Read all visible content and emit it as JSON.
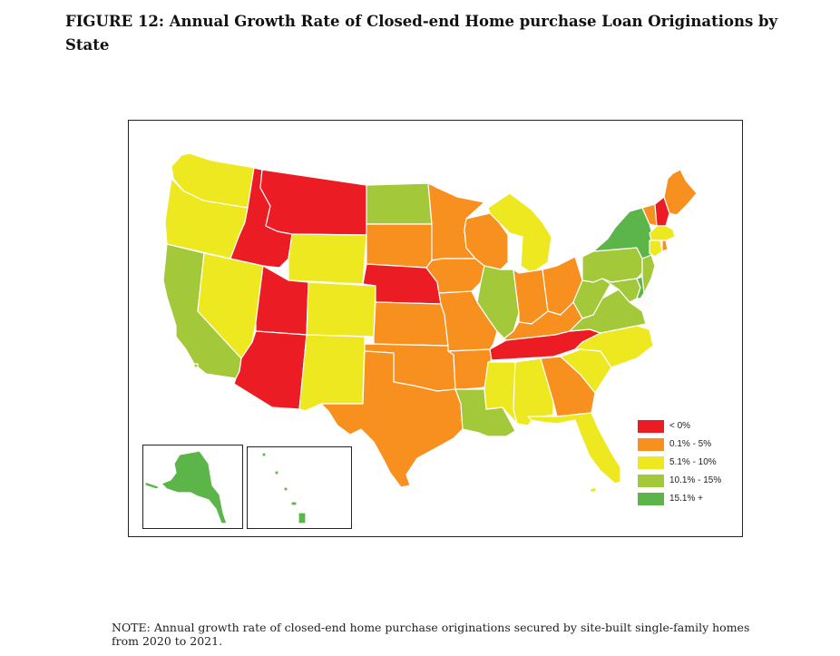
{
  "figure": {
    "title": "FIGURE 12: Annual Growth Rate of Closed-end Home purchase Loan Originations by State",
    "note": "NOTE:  Annual growth rate of closed-end home purchase originations secured by site-built single-family homes from 2020 to 2021."
  },
  "colors": {
    "lt0": "#ec1c24",
    "c0_5": "#f7901e",
    "c5_10": "#eee821",
    "c10_15": "#a3c93a",
    "c15plus": "#5cb548"
  },
  "legend": [
    {
      "label": "< 0%",
      "key": "lt0"
    },
    {
      "label": "0.1% - 5%",
      "key": "c0_5"
    },
    {
      "label": "5.1% - 10%",
      "key": "c5_10"
    },
    {
      "label": "10.1% - 15%",
      "key": "c10_15"
    },
    {
      "label": "15.1% +",
      "key": "c15plus"
    }
  ],
  "state_classes": {
    "WA": "c5_10",
    "OR": "c5_10",
    "CA": "c10_15",
    "NV": "c5_10",
    "ID": "lt0",
    "MT": "lt0",
    "WY": "c5_10",
    "UT": "lt0",
    "AZ": "lt0",
    "CO": "c5_10",
    "NM": "c5_10",
    "ND": "c10_15",
    "SD": "c0_5",
    "NE": "lt0",
    "KS": "c0_5",
    "OK": "c0_5",
    "TX": "c0_5",
    "MN": "c0_5",
    "IA": "c0_5",
    "MO": "c0_5",
    "AR": "c0_5",
    "LA": "c10_15",
    "WI": "c0_5",
    "IL": "c10_15",
    "MI": "c5_10",
    "IN": "c0_5",
    "OH": "c0_5",
    "KY": "c0_5",
    "TN": "lt0",
    "MS": "c5_10",
    "AL": "c5_10",
    "GA": "c0_5",
    "FL": "c5_10",
    "SC": "c5_10",
    "NC": "c5_10",
    "VA": "c10_15",
    "WV": "c10_15",
    "PA": "c10_15",
    "NY": "c15plus",
    "VT": "c0_5",
    "NH": "lt0",
    "ME": "c0_5",
    "MA": "c5_10",
    "RI": "c0_5",
    "CT": "c5_10",
    "NJ": "c10_15",
    "DE": "c15plus",
    "MD": "c10_15",
    "AK": "c15plus",
    "HI": "c15plus"
  }
}
